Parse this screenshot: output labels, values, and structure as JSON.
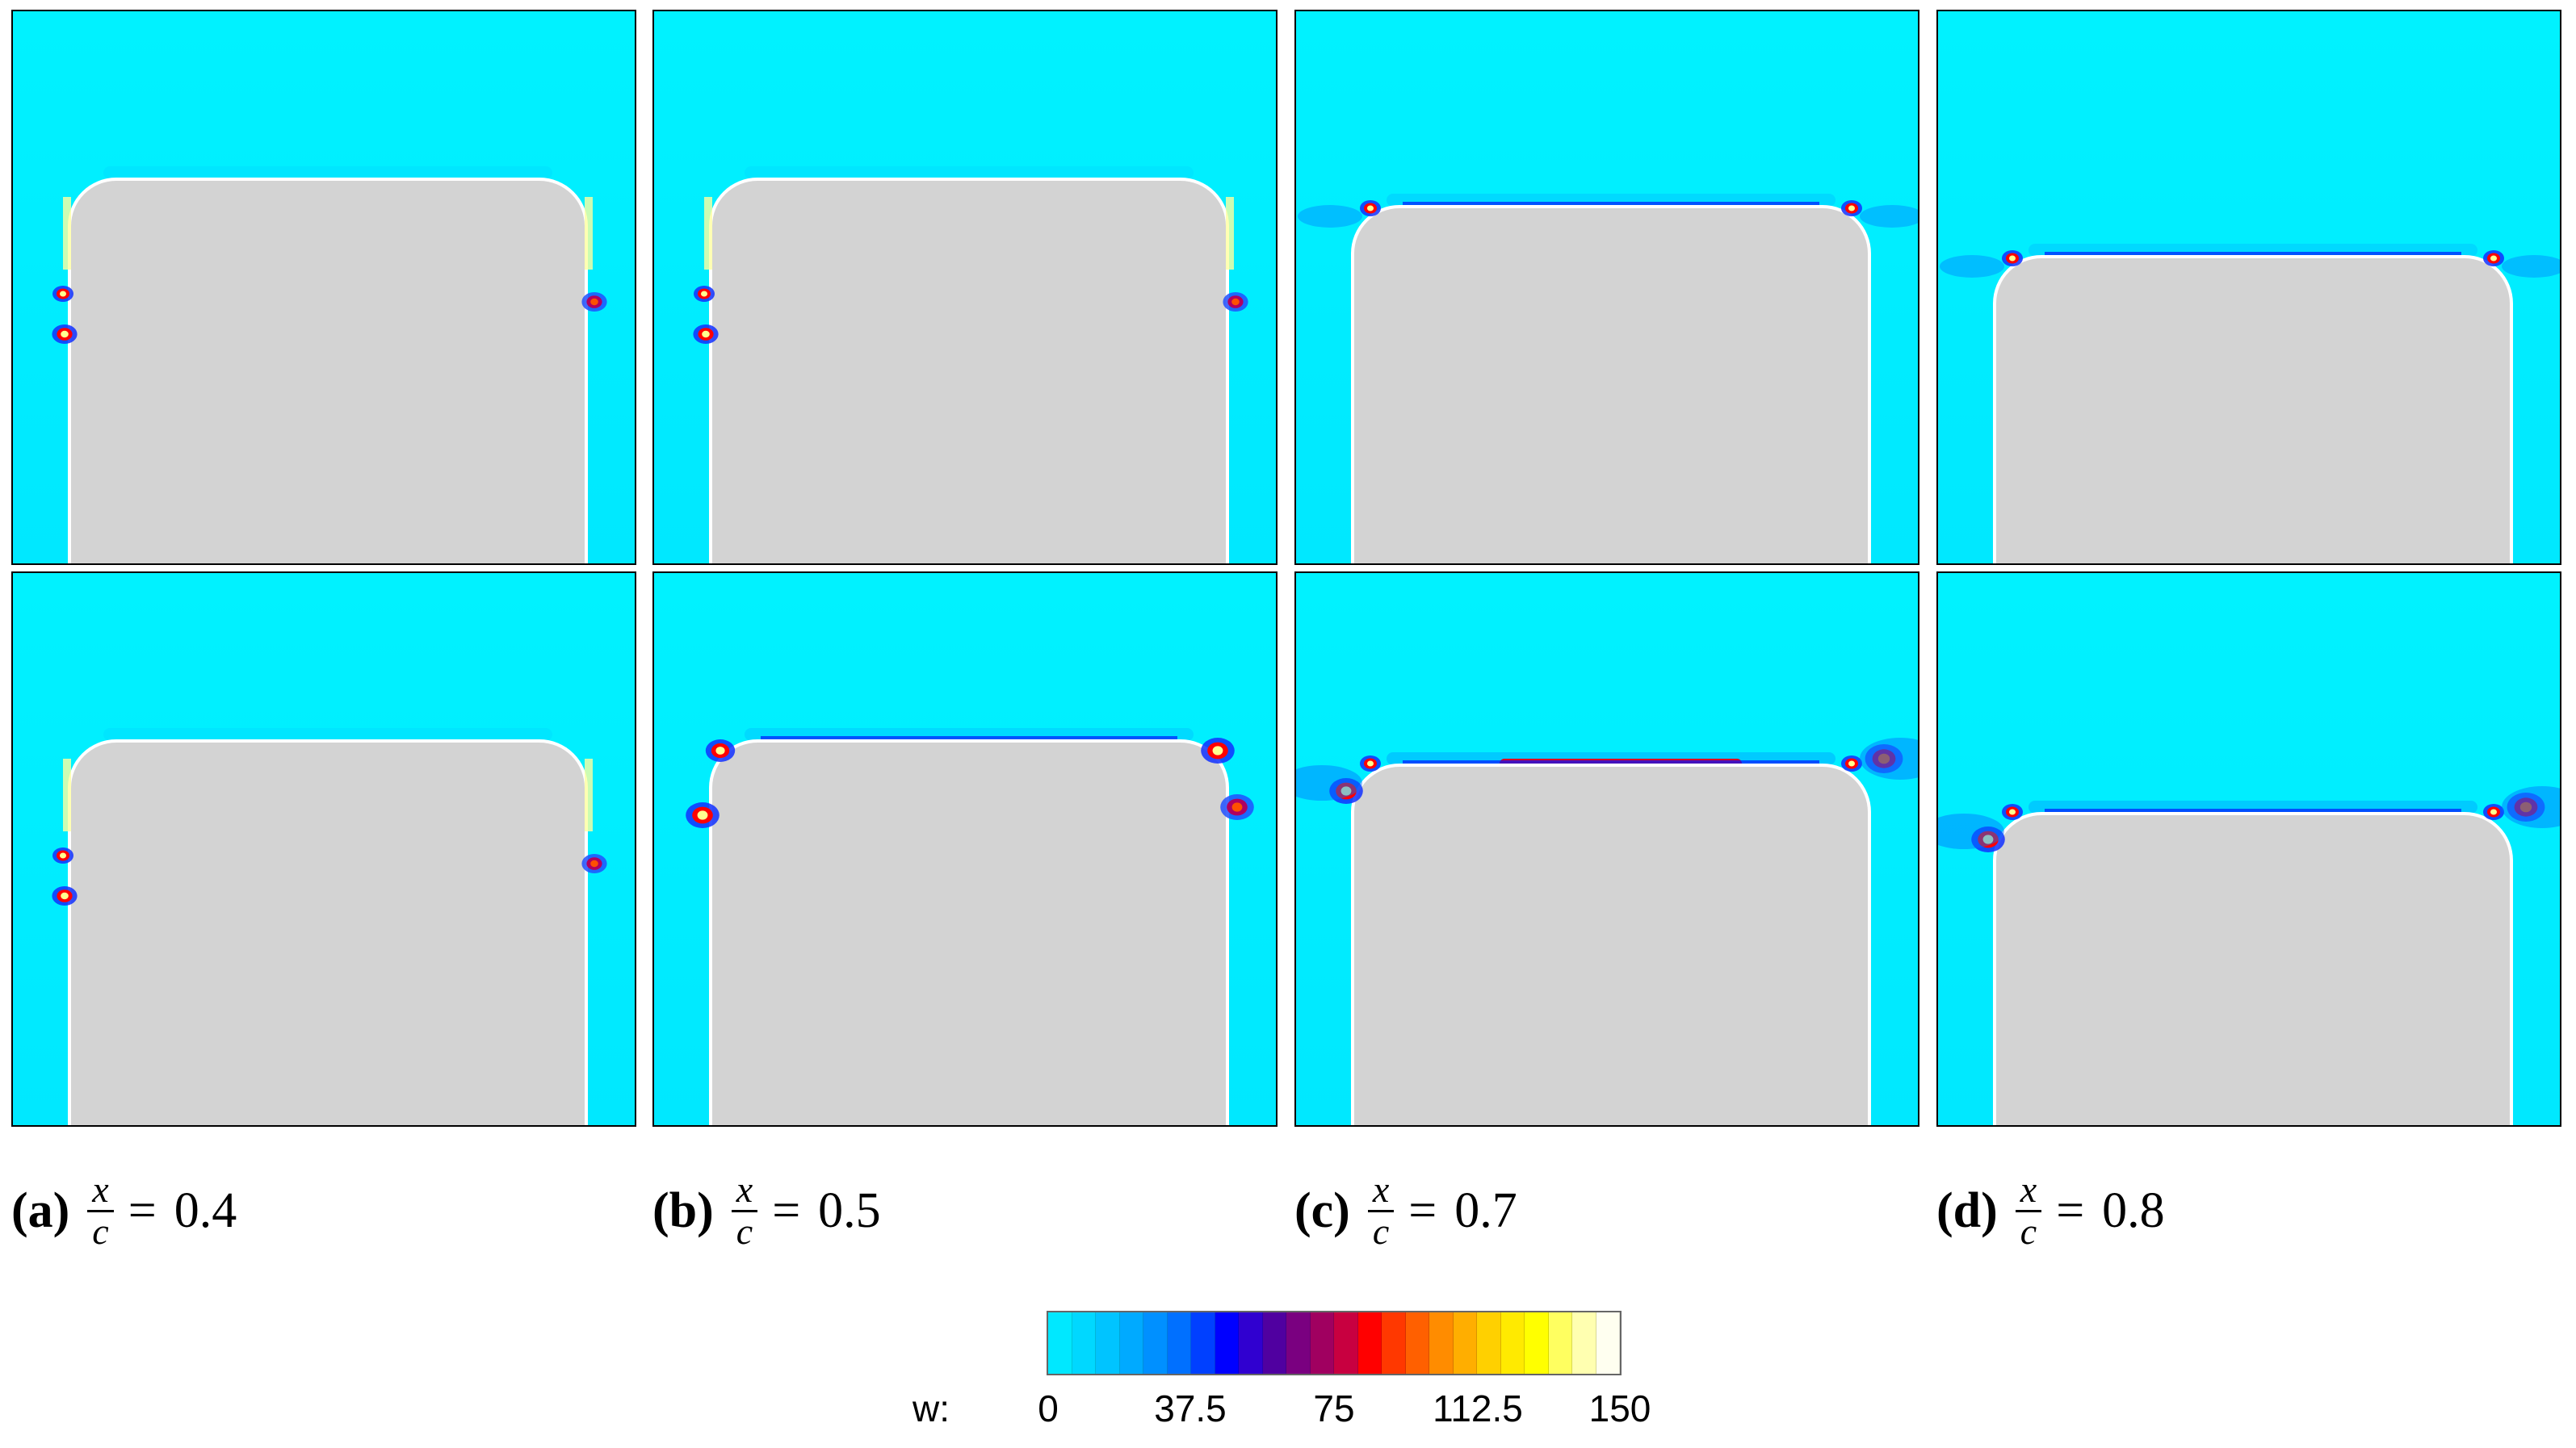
{
  "figure": {
    "panels": [
      {
        "id": "a",
        "shape": "tall",
        "top_row": "attached",
        "bottom_row": "attached"
      },
      {
        "id": "b",
        "shape": "tall",
        "top_row": "attached",
        "bottom_row": "vortex"
      },
      {
        "id": "c",
        "shape": "mid",
        "top_row": "mild",
        "bottom_row": "strong"
      },
      {
        "id": "d",
        "shape": "short",
        "top_row": "mild",
        "bottom_row": "strong"
      }
    ],
    "captions": [
      {
        "label": "(a)",
        "num": "x",
        "den": "c",
        "eq": "=",
        "value": "0.4"
      },
      {
        "label": "(b)",
        "num": "x",
        "den": "c",
        "eq": "=",
        "value": "0.5"
      },
      {
        "label": "(c)",
        "num": "x",
        "den": "c",
        "eq": "=",
        "value": "0.7"
      },
      {
        "label": "(d)",
        "num": "x",
        "den": "c",
        "eq": "=",
        "value": "0.8"
      }
    ],
    "colorbar": {
      "title": "w:",
      "min": 0,
      "max": 150,
      "ticks": [
        "0",
        "37.5",
        "75",
        "112.5",
        "150"
      ],
      "colors": [
        "#00e8ff",
        "#00d8ff",
        "#00c4ff",
        "#00aaff",
        "#0090ff",
        "#0070ff",
        "#0040ff",
        "#0000ff",
        "#3000d0",
        "#5000a0",
        "#7a0080",
        "#a00060",
        "#c80040",
        "#ff0000",
        "#ff3800",
        "#ff6000",
        "#ff8c00",
        "#ffae00",
        "#ffd000",
        "#ffea00",
        "#ffff00",
        "#ffff60",
        "#ffffb0",
        "#fffff0"
      ]
    }
  }
}
